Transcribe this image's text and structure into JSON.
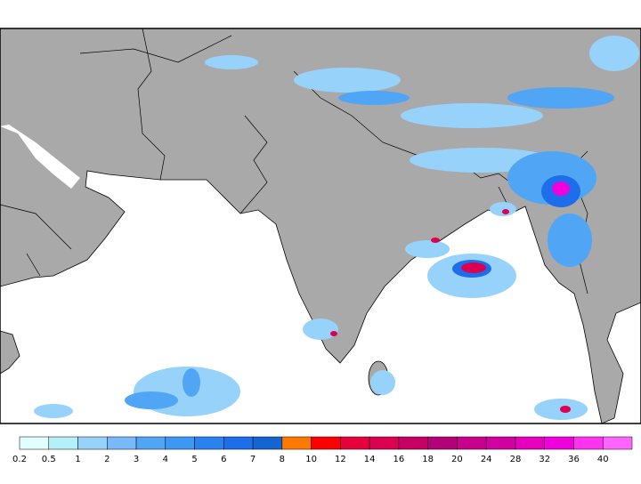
{
  "colorbar": {
    "levels": [
      0.2,
      0.5,
      1,
      2,
      3,
      4,
      5,
      6,
      7,
      8,
      10,
      12,
      14,
      16,
      18,
      20,
      24,
      28,
      32,
      36,
      40
    ],
    "colors": [
      "#e1ffff",
      "#b4f0fa",
      "#96d2fa",
      "#78b9fa",
      "#50a5f5",
      "#3c97f5",
      "#2882f0",
      "#1e6eeb",
      "#1464d2",
      "#ff7800",
      "#ff0000",
      "#e6003c",
      "#dc0050",
      "#c80064",
      "#b40078",
      "#c8008c",
      "#d200a0",
      "#e600be",
      "#f000dc",
      "#ff32f0",
      "#ff64ff"
    ]
  }
}
